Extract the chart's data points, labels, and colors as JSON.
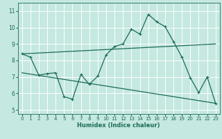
{
  "xlabel": "Humidex (Indice chaleur)",
  "bg_color": "#c5e8e0",
  "line_color": "#1a6b5a",
  "grid_color": "#ffffff",
  "xlim": [
    -0.5,
    23.5
  ],
  "ylim": [
    4.75,
    11.5
  ],
  "yticks": [
    5,
    6,
    7,
    8,
    9,
    10,
    11
  ],
  "xticks": [
    0,
    1,
    2,
    3,
    4,
    5,
    6,
    7,
    8,
    9,
    10,
    11,
    12,
    13,
    14,
    15,
    16,
    17,
    18,
    19,
    20,
    21,
    22,
    23
  ],
  "main_x": [
    0,
    1,
    2,
    3,
    4,
    5,
    6,
    7,
    8,
    9,
    10,
    11,
    12,
    13,
    14,
    15,
    16,
    17,
    18,
    19,
    20,
    21,
    22,
    23
  ],
  "main_y": [
    8.4,
    8.2,
    7.1,
    7.2,
    7.25,
    5.8,
    5.65,
    7.15,
    6.55,
    7.05,
    8.35,
    8.85,
    9.0,
    9.9,
    9.6,
    10.8,
    10.35,
    10.05,
    9.15,
    8.2,
    6.95,
    6.05,
    7.0,
    5.4
  ],
  "upper_trend_x": [
    0,
    23
  ],
  "upper_trend_y": [
    8.4,
    9.0
  ],
  "lower_trend_x": [
    0,
    23
  ],
  "lower_trend_y": [
    7.25,
    5.4
  ]
}
